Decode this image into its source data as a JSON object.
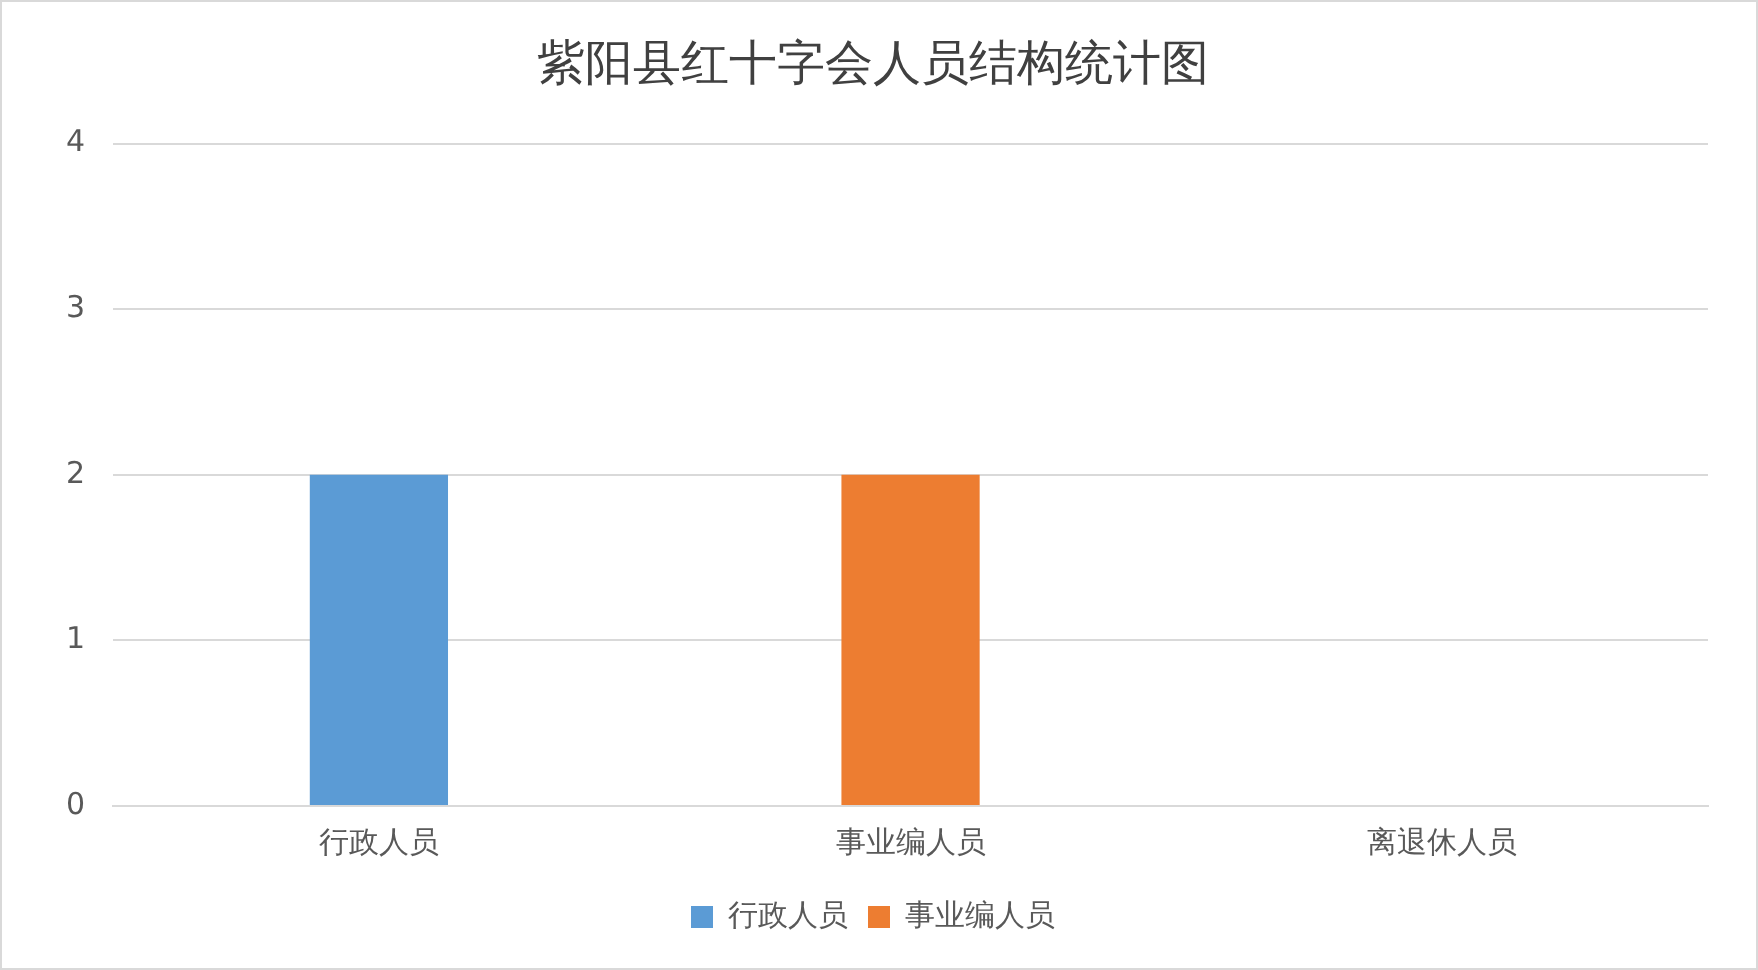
{
  "chart_data": {
    "type": "bar",
    "title": "紫阳县红十字会人员结构统计图",
    "categories": [
      "行政人员",
      "事业编人员",
      "离退休人员"
    ],
    "series": [
      {
        "name": "行政人员",
        "color": "#5b9bd5",
        "values": [
          2,
          null,
          null
        ]
      },
      {
        "name": "事业编人员",
        "color": "#ed7d31",
        "values": [
          null,
          2,
          null
        ]
      }
    ],
    "ylim": [
      0,
      4
    ],
    "yticks": [
      0,
      1,
      2,
      3,
      4
    ],
    "grid": "y",
    "legend": "bottom"
  }
}
